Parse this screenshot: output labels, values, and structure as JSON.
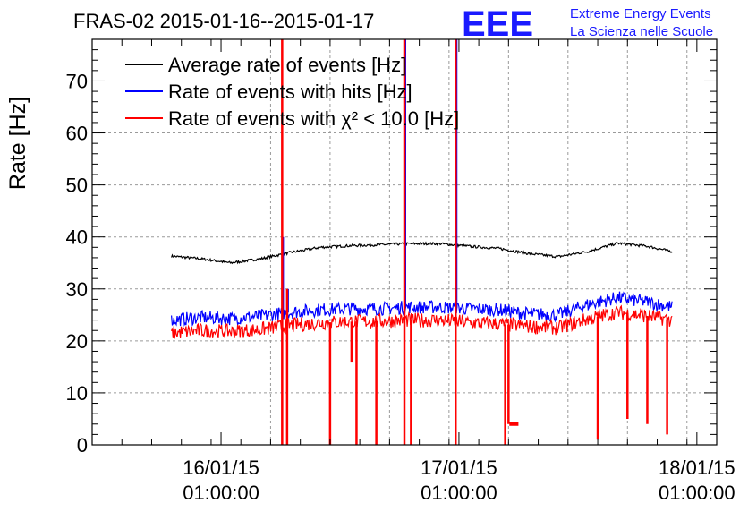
{
  "chart_data": {
    "type": "line",
    "title": "FRAS-02 2015-01-16--2015-01-17",
    "ylabel": "Rate [Hz]",
    "xlabel": "",
    "ylim": [
      0,
      78
    ],
    "xlim": [
      "2015-01-15T12:00:00",
      "2015-01-18T03:00:00"
    ],
    "y_ticks": [
      0,
      10,
      20,
      30,
      40,
      50,
      60,
      70
    ],
    "x_ticks": [
      {
        "x": "2015-01-16T01:00:00",
        "label_line1": "16/01/15",
        "label_line2": "01:00:00"
      },
      {
        "x": "2015-01-17T01:00:00",
        "label_line1": "17/01/15",
        "label_line2": "01:00:00"
      },
      {
        "x": "2015-01-18T01:00:00",
        "label_line1": "18/01/15",
        "label_line2": "01:00:00"
      }
    ],
    "grid": true,
    "legend_position": "top-left",
    "series": [
      {
        "name": "Average rate of events [Hz]",
        "color": "#000000",
        "x": [
          "2015-01-15T20:00",
          "2015-01-15T23:00",
          "2015-01-16T02:00",
          "2015-01-16T05:00",
          "2015-01-16T08:00",
          "2015-01-16T11:00",
          "2015-01-16T14:00",
          "2015-01-16T17:00",
          "2015-01-16T20:00",
          "2015-01-16T23:00",
          "2015-01-17T02:00",
          "2015-01-17T05:00",
          "2015-01-17T08:00",
          "2015-01-17T11:00",
          "2015-01-17T14:00",
          "2015-01-17T17:00",
          "2015-01-17T20:00",
          "2015-01-17T22:30"
        ],
        "values": [
          36.3,
          35.8,
          35.0,
          35.8,
          37.0,
          38.0,
          38.3,
          38.5,
          38.7,
          38.7,
          38.2,
          37.8,
          36.8,
          36.2,
          37.2,
          38.8,
          38.2,
          37.2
        ]
      },
      {
        "name": "Rate of events with hits [Hz]",
        "color": "#0000ff",
        "x": [
          "2015-01-15T20:00",
          "2015-01-15T23:00",
          "2015-01-16T02:00",
          "2015-01-16T05:00",
          "2015-01-16T08:00",
          "2015-01-16T11:00",
          "2015-01-16T14:00",
          "2015-01-16T17:00",
          "2015-01-16T20:00",
          "2015-01-16T23:00",
          "2015-01-17T02:00",
          "2015-01-17T05:00",
          "2015-01-17T08:00",
          "2015-01-17T11:00",
          "2015-01-17T14:00",
          "2015-01-17T17:00",
          "2015-01-17T20:00",
          "2015-01-17T22:30"
        ],
        "values": [
          24.0,
          24.5,
          24.3,
          24.8,
          25.5,
          26.0,
          26.2,
          26.2,
          26.5,
          26.5,
          26.2,
          26.0,
          25.2,
          25.0,
          27.0,
          28.3,
          27.5,
          26.5
        ]
      },
      {
        "name": "Rate of events with χ² < 10.0 [Hz]",
        "color": "#ff0000",
        "x": [
          "2015-01-15T20:00",
          "2015-01-15T23:00",
          "2015-01-16T02:00",
          "2015-01-16T05:00",
          "2015-01-16T08:00",
          "2015-01-16T11:00",
          "2015-01-16T14:00",
          "2015-01-16T17:00",
          "2015-01-16T20:00",
          "2015-01-16T23:00",
          "2015-01-17T02:00",
          "2015-01-17T05:00",
          "2015-01-17T08:00",
          "2015-01-17T11:00",
          "2015-01-17T14:00",
          "2015-01-17T17:00",
          "2015-01-17T20:00",
          "2015-01-17T22:30"
        ],
        "values": [
          21.5,
          22.0,
          21.8,
          22.2,
          23.0,
          23.5,
          23.7,
          23.8,
          24.0,
          24.0,
          23.5,
          23.3,
          22.8,
          22.5,
          24.2,
          25.5,
          24.8,
          24.0
        ]
      }
    ],
    "excursions": [
      {
        "x": "2015-01-16T07:10",
        "red_min": 0,
        "red_max": 78,
        "blue_max": 40
      },
      {
        "x": "2015-01-16T07:40",
        "red_min": 0,
        "red_max": 30,
        "blue_max": 30
      },
      {
        "x": "2015-01-16T12:00",
        "red_min": 0
      },
      {
        "x": "2015-01-16T14:10",
        "red_min": 16
      },
      {
        "x": "2015-01-16T14:40",
        "red_min": 0
      },
      {
        "x": "2015-01-16T16:40",
        "red_min": 0
      },
      {
        "x": "2015-01-16T19:30",
        "red_min": 0,
        "red_max": 78,
        "blue_max": 78
      },
      {
        "x": "2015-01-16T20:10",
        "red_min": 0
      },
      {
        "x": "2015-01-17T00:40",
        "red_min": 0,
        "red_max": 78,
        "blue_max": 78
      },
      {
        "x": "2015-01-17T05:40",
        "red_min": 0
      },
      {
        "x": "2015-01-17T06:00",
        "red_min": 4
      },
      {
        "x": "2015-01-17T15:00",
        "red_min": 1
      },
      {
        "x": "2015-01-17T18:00",
        "red_min": 5
      },
      {
        "x": "2015-01-17T20:00",
        "red_min": 4
      },
      {
        "x": "2015-01-17T22:00",
        "red_min": 2
      }
    ],
    "dropout": {
      "x_start": "2015-01-17T06:05",
      "x_end": "2015-01-17T07:00",
      "value": 4
    }
  },
  "logo": {
    "letters": "EEE",
    "line1": "Extreme Energy Events",
    "line2": "La Scienza nelle Scuole",
    "color": "#1a1aff"
  }
}
